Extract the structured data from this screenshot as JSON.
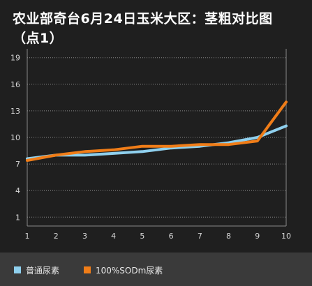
{
  "chart_data": {
    "type": "line",
    "title": "农业部奇台6月24日玉米大区：茎粗对比图（点1）",
    "title_lines": [
      "农业部奇台6月24日玉米大区：茎粗对比图",
      "（点1）"
    ],
    "xlabel": "",
    "ylabel": "",
    "x": [
      1,
      2,
      3,
      4,
      5,
      6,
      7,
      8,
      9,
      10
    ],
    "y_ticks": [
      1,
      4,
      7,
      10,
      13,
      16,
      19
    ],
    "ylim": [
      0,
      20
    ],
    "grid": true,
    "legend_position": "bottom",
    "series": [
      {
        "name": "普通尿素",
        "color": "#8fd0ee",
        "values": [
          7.6,
          8.0,
          8.0,
          8.2,
          8.4,
          8.8,
          9.0,
          9.4,
          10.0,
          11.3
        ]
      },
      {
        "name": "100%SODm尿素",
        "color": "#f07d18",
        "values": [
          7.4,
          8.0,
          8.4,
          8.6,
          9.0,
          9.0,
          9.2,
          9.2,
          9.6,
          14.0
        ]
      }
    ]
  }
}
